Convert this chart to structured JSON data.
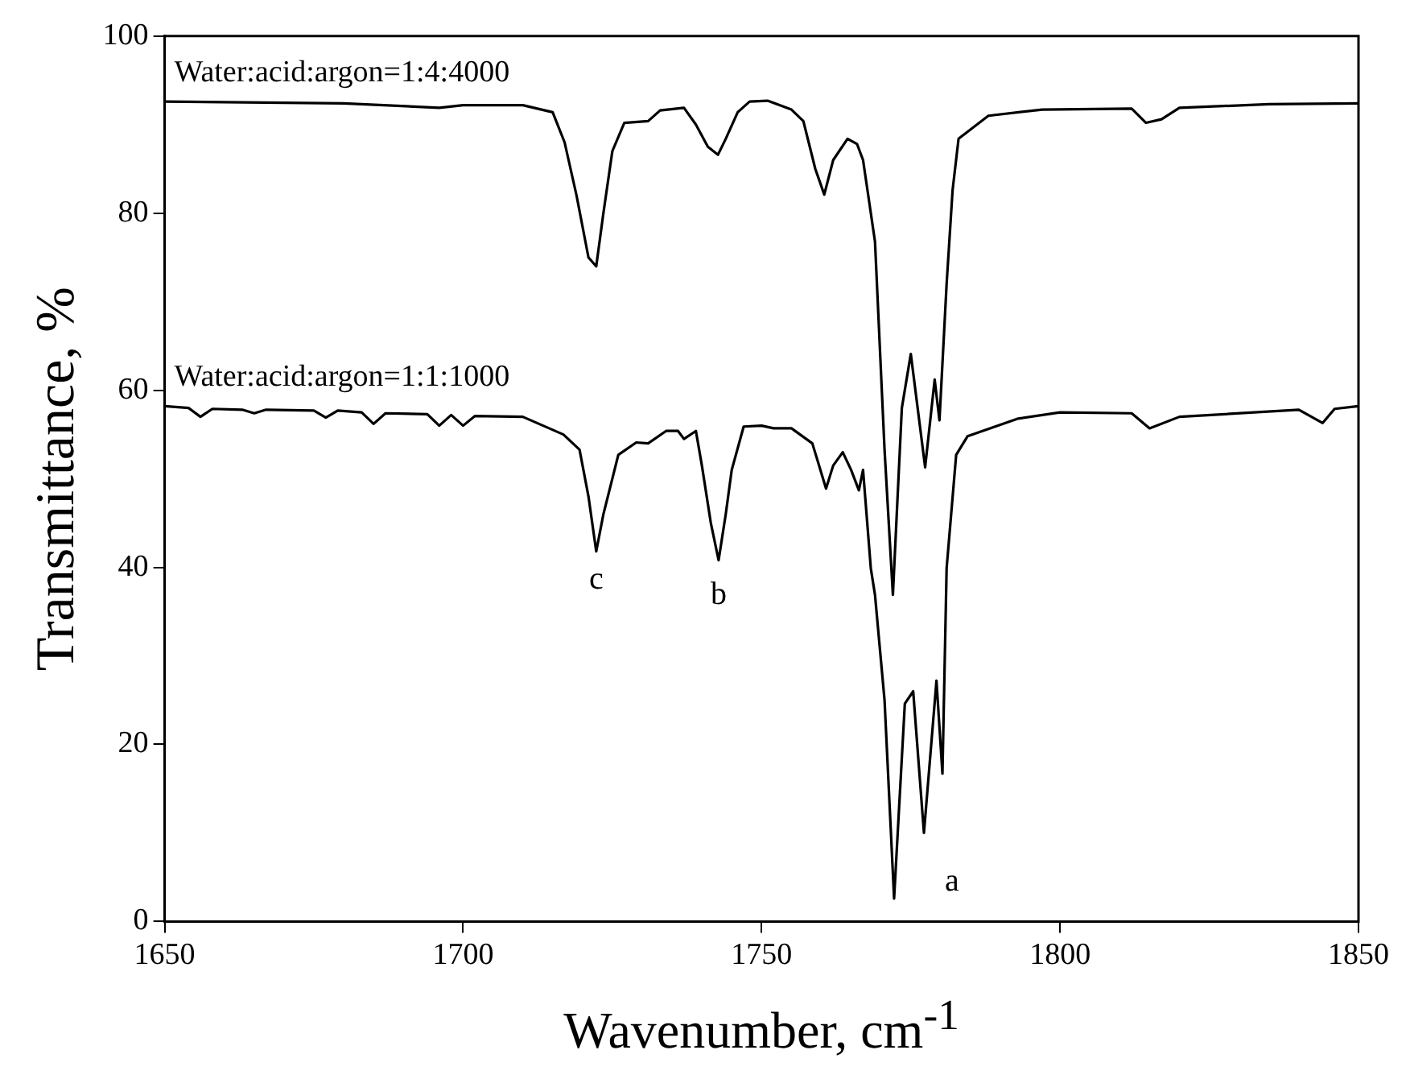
{
  "chart_data": {
    "type": "line",
    "xlabel": "Wavenumber, cm$^{-1}$",
    "ylabel": "Transmittance, %",
    "xlim": [
      1650,
      1850
    ],
    "xticks": [
      1650,
      1700,
      1750,
      1800,
      1850
    ],
    "ylim": [
      0,
      100
    ],
    "yticks": [
      0,
      20,
      40,
      60,
      80,
      100
    ],
    "grid": false,
    "legend": false,
    "marker": "none",
    "line_style": "solid",
    "series": [
      {
        "name": "Water:acid:argon=1:4:4000",
        "color": "#000000",
        "x": [
          1650,
          1680,
          1696,
          1700,
          1710,
          1715,
          1717,
          1719,
          1721,
          1722.3,
          1723.5,
          1725,
          1727,
          1731,
          1733,
          1737,
          1739,
          1741,
          1742.7,
          1744,
          1746,
          1748,
          1751,
          1755,
          1757,
          1759,
          1760.5,
          1762,
          1764.4,
          1766,
          1767,
          1769,
          1770.6,
          1772,
          1773.5,
          1775,
          1777.4,
          1779,
          1779.8,
          1781,
          1782,
          1783,
          1788,
          1797,
          1812,
          1814.4,
          1817,
          1820,
          1835,
          1850
        ],
        "values": [
          92.6,
          92.4,
          91.9,
          92.2,
          92.2,
          91.4,
          88,
          82,
          75,
          74.0,
          80,
          87,
          90.2,
          90.4,
          91.6,
          91.9,
          90,
          87.5,
          86.6,
          88.4,
          91.4,
          92.6,
          92.7,
          91.7,
          90.4,
          85,
          82.1,
          86,
          88.4,
          87.8,
          86,
          76.8,
          53.3,
          36.9,
          58,
          64.1,
          51.3,
          61.2,
          56.6,
          72,
          82.6,
          88.4,
          91,
          91.7,
          91.8,
          90.2,
          90.6,
          91.9,
          92.3,
          92.4
        ]
      },
      {
        "name": "Water:acid:argon=1:1:1000",
        "color": "#000000",
        "x": [
          1650,
          1654,
          1656,
          1658,
          1663,
          1665,
          1667,
          1675,
          1677,
          1679,
          1683,
          1685,
          1687,
          1694,
          1696,
          1698,
          1700,
          1702,
          1710,
          1716.8,
          1719.5,
          1721,
          1722.3,
          1723.5,
          1726,
          1729,
          1731,
          1734,
          1736,
          1737,
          1739,
          1740,
          1741.5,
          1742.8,
          1744,
          1745,
          1747,
          1750,
          1752,
          1755,
          1758.5,
          1760.8,
          1762,
          1763.6,
          1765,
          1766.3,
          1767,
          1768.3,
          1769,
          1770.6,
          1772.2,
          1774,
          1775.4,
          1777.2,
          1779.3,
          1780.3,
          1781,
          1782.6,
          1784.5,
          1793,
          1800,
          1812,
          1815,
          1820,
          1840,
          1844,
          1846,
          1850
        ],
        "values": [
          58.2,
          58.0,
          57.0,
          57.9,
          57.8,
          57.4,
          57.8,
          57.7,
          56.9,
          57.7,
          57.5,
          56.2,
          57.4,
          57.3,
          56.0,
          57.2,
          56.0,
          57.1,
          57.0,
          55,
          53.3,
          48,
          41.8,
          46,
          52.7,
          54.1,
          54.0,
          55.4,
          55.4,
          54.5,
          55.4,
          51.5,
          45,
          40.8,
          46,
          51,
          55.9,
          56.0,
          55.7,
          55.7,
          54,
          48.9,
          51.5,
          53,
          51,
          48.7,
          51,
          39.9,
          36.9,
          25,
          2.6,
          24.6,
          26,
          10,
          27.2,
          16.7,
          39.9,
          52.7,
          54.8,
          56.8,
          57.5,
          57.4,
          55.7,
          57,
          57.8,
          56.3,
          57.9,
          58.2
        ]
      }
    ],
    "annotations": [
      {
        "text": "c",
        "x": 1722.3,
        "y": 41.8
      },
      {
        "text": "b",
        "x": 1742.8,
        "y": 40.8
      },
      {
        "text": "a",
        "x": 1772.2,
        "y": 2.6
      }
    ]
  }
}
